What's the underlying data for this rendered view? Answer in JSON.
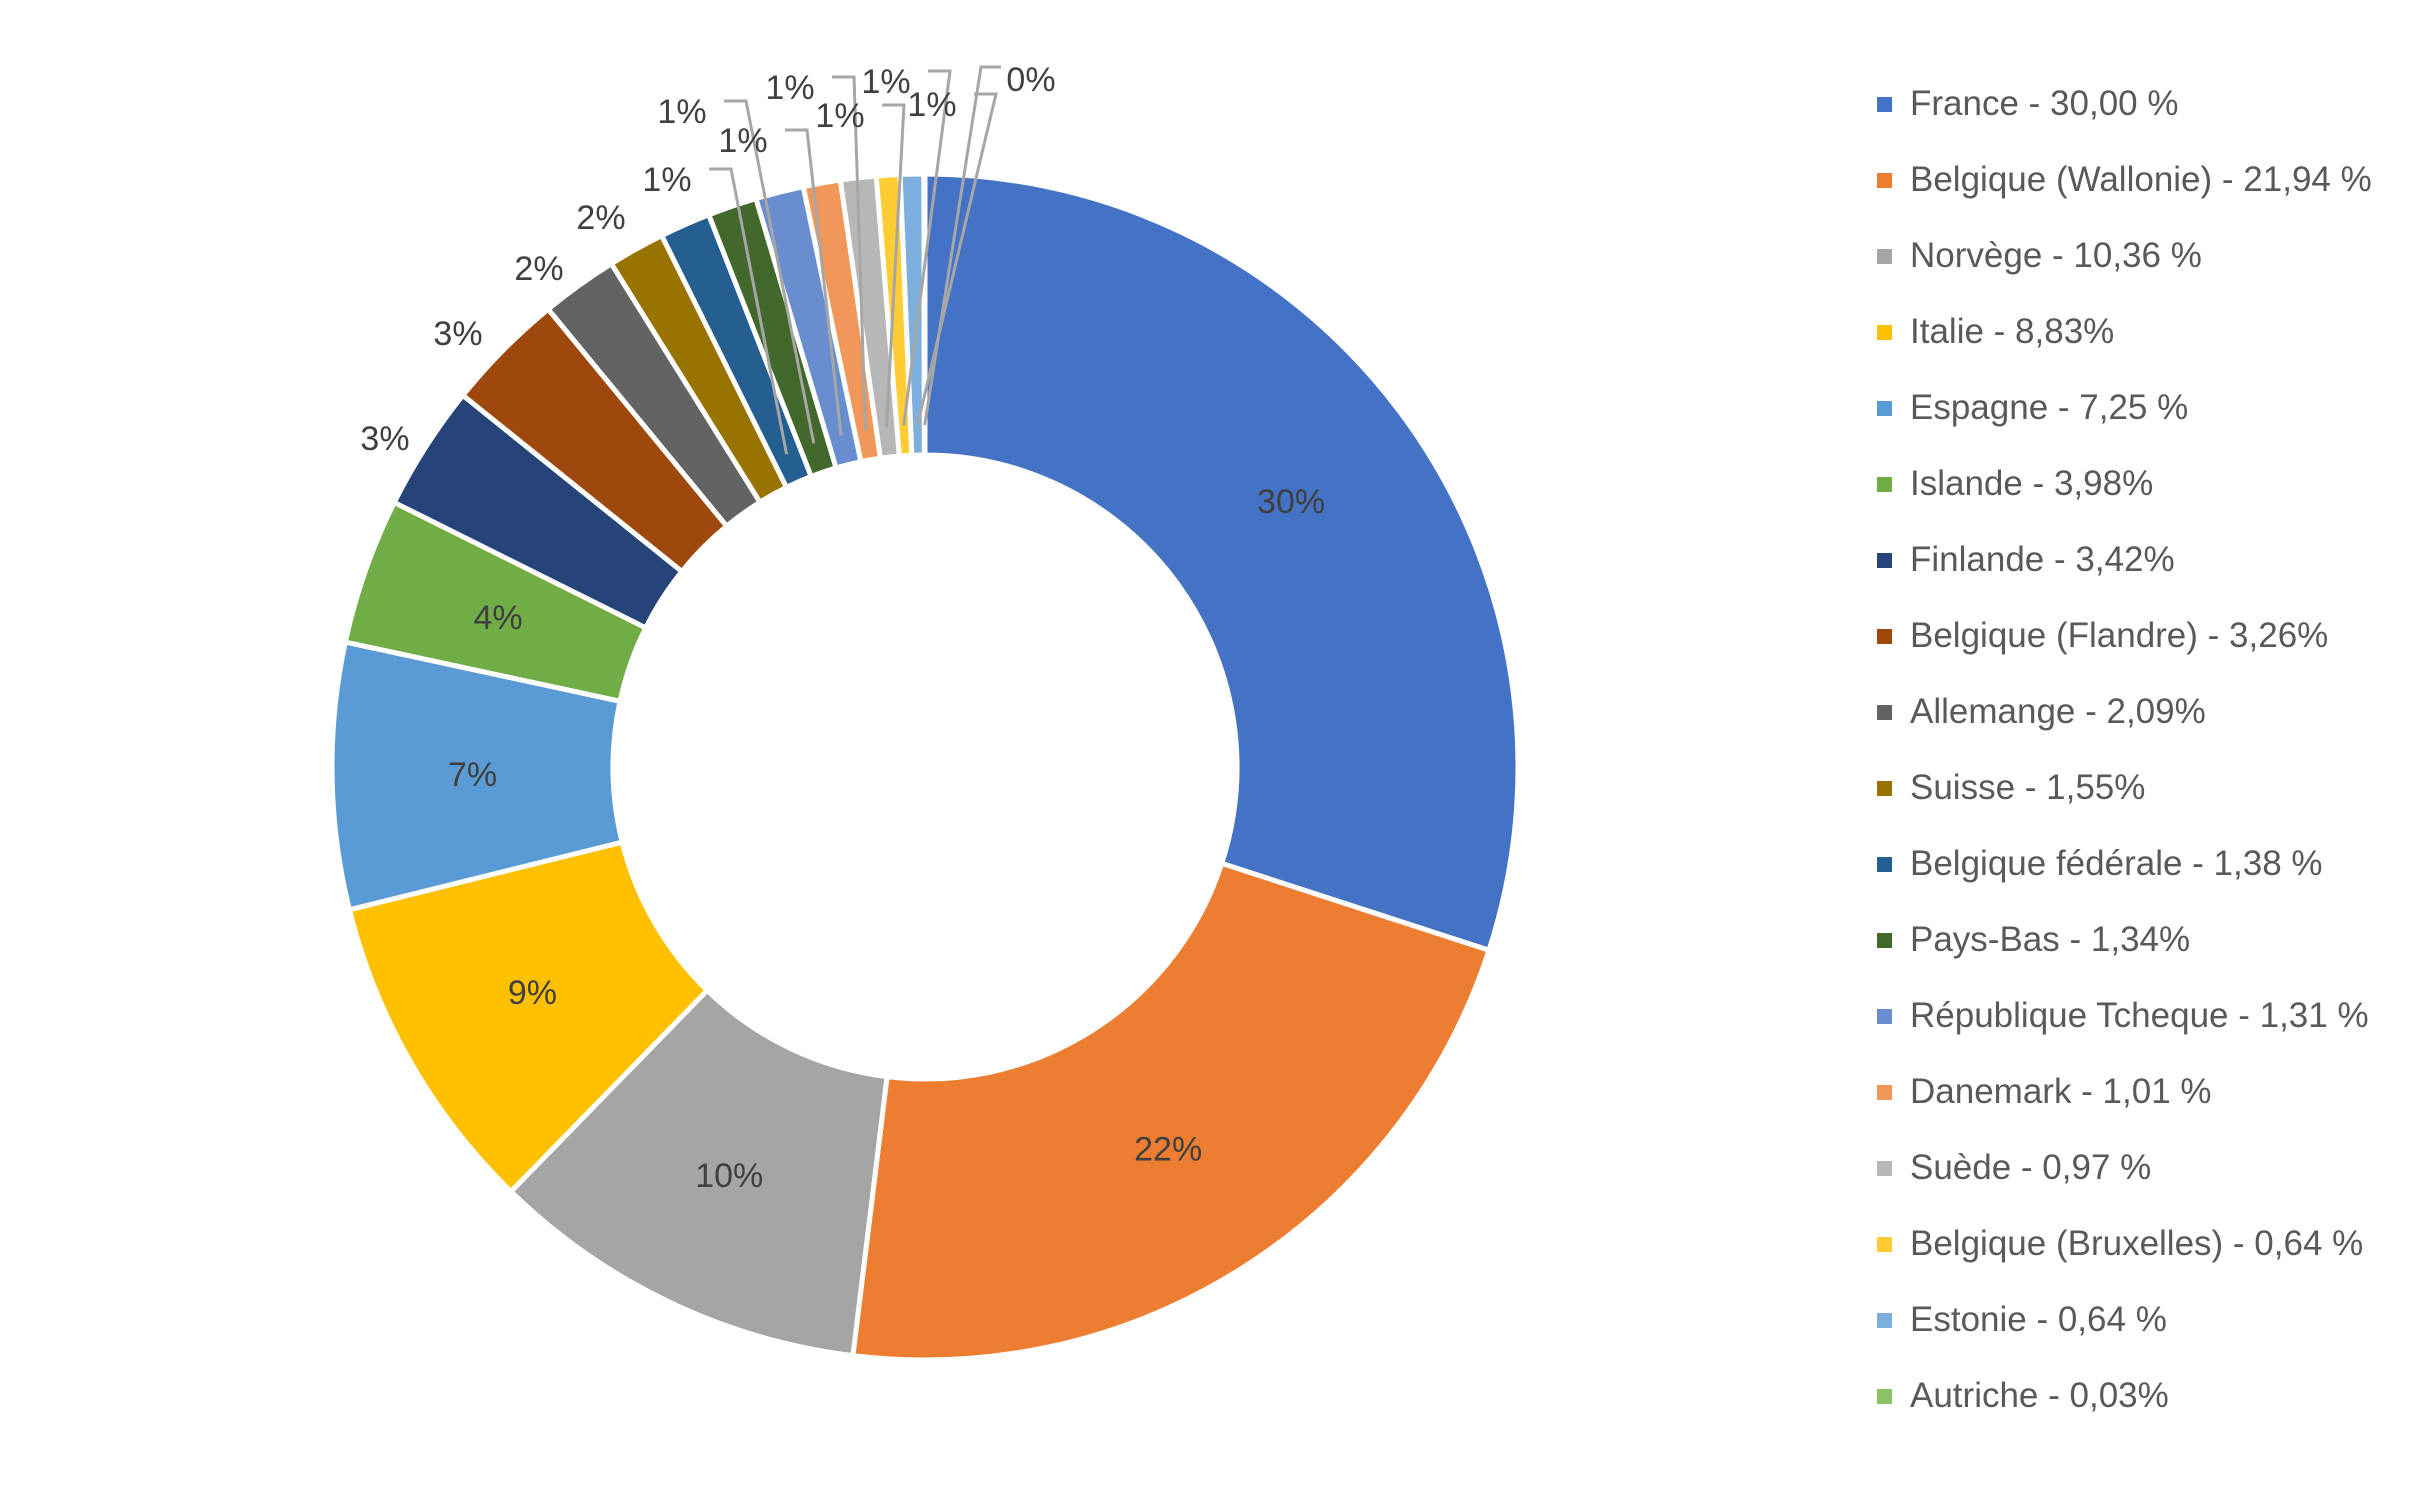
{
  "chart_data": {
    "type": "pie",
    "variant": "doughnut",
    "title": "",
    "categories": [
      "France",
      "Belgique (Wallonie)",
      "Norvège",
      "Italie",
      "Espagne",
      "Islande",
      "Finlande",
      "Belgique (Flandre)",
      "Allemange",
      "Suisse",
      "Belgique fédérale",
      "Pays-Bas",
      "République Tcheque",
      "Danemark",
      "Suède",
      "Belgique (Bruxelles)",
      "Estonie",
      "Autriche"
    ],
    "values": [
      30.0,
      21.94,
      10.36,
      8.83,
      7.25,
      3.98,
      3.42,
      3.26,
      2.09,
      1.55,
      1.38,
      1.34,
      1.31,
      1.01,
      0.97,
      0.64,
      0.64,
      0.03
    ],
    "data_labels": [
      "30%",
      "22%",
      "10%",
      "9%",
      "7%",
      "4%",
      "3%",
      "3%",
      "2%",
      "2%",
      "1%",
      "1%",
      "1%",
      "1%",
      "1%",
      "1%",
      "1%",
      "0%"
    ],
    "legend_labels": [
      "France - 30,00 %",
      "Belgique (Wallonie) - 21,94 %",
      "Norvège - 10,36 %",
      "Italie - 8,83%",
      "Espagne - 7,25 %",
      "Islande - 3,98%",
      "Finlande - 3,42%",
      "Belgique (Flandre) - 3,26%",
      "Allemange - 2,09%",
      "Suisse - 1,55%",
      "Belgique fédérale - 1,38 %",
      "Pays-Bas - 1,34%",
      "République Tcheque - 1,31 %",
      "Danemark - 1,01 %",
      "Suède - 0,97 %",
      "Belgique (Bruxelles) - 0,64 %",
      "Estonie - 0,64 %",
      "Autriche - 0,03%"
    ],
    "colors": [
      "#4472C4",
      "#ED7D31",
      "#A5A5A5",
      "#FFC000",
      "#5B9BD5",
      "#70AD47",
      "#264478",
      "#9E480E",
      "#636363",
      "#997300",
      "#255E91",
      "#43682B",
      "#698ED0",
      "#F1975A",
      "#B7B7B7",
      "#FFCD33",
      "#7CAFDD",
      "#8CC168"
    ],
    "legend_position": "right",
    "start": "top",
    "direction": "clockwise"
  }
}
